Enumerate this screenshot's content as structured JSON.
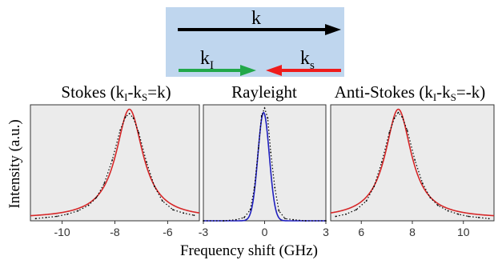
{
  "diagram": {
    "k_label": "k",
    "kI_main": "k",
    "kI_sub": "I",
    "ks_main": "k",
    "ks_sub": "s",
    "box_color": "#bfd6ee",
    "k_arrow_color": "#000000",
    "kI_arrow_color": "#22a84a",
    "ks_arrow_color": "#ee1c1c"
  },
  "axes": {
    "ylabel": "Intensity (a.u.)",
    "xlabel": "Frequency shift (GHz)",
    "panel_bg": "#ebebeb",
    "grid_color": "#ffffff"
  },
  "chart_data": [
    {
      "type": "line",
      "title": "Stokes (k",
      "title_sub1": "I",
      "title_mid": "-k",
      "title_sub2": "S",
      "title_end": "=k)",
      "xlim": [
        -11.2,
        -4.8
      ],
      "ylim": [
        0,
        1.05
      ],
      "xticks": [
        -10,
        -8,
        -6
      ],
      "xticklabels": [
        "-10",
        "-8",
        "-6"
      ],
      "grid_lines": false,
      "fit": {
        "center": -7.45,
        "width": 0.62,
        "amplitude": 0.99,
        "baseline": 0.02,
        "color": "#d62728"
      },
      "measured": {
        "style": "dotted",
        "x": [
          -11.0,
          -10.6,
          -10.2,
          -9.8,
          -9.4,
          -9.0,
          -8.7,
          -8.4,
          -8.1,
          -7.8,
          -7.6,
          -7.45,
          -7.3,
          -7.1,
          -6.8,
          -6.5,
          -6.2,
          -5.8,
          -5.4,
          -5.0
        ],
        "y": [
          0.02,
          0.03,
          0.04,
          0.06,
          0.09,
          0.14,
          0.21,
          0.34,
          0.55,
          0.82,
          0.94,
          0.97,
          0.93,
          0.8,
          0.53,
          0.31,
          0.18,
          0.1,
          0.07,
          0.05
        ]
      }
    },
    {
      "type": "line",
      "title": "Rayleight",
      "xlim": [
        -3.0,
        3.0
      ],
      "ylim": [
        0,
        1.05
      ],
      "xticks": [
        -3,
        0,
        3
      ],
      "xticklabels": [
        "-3",
        "0",
        "3"
      ],
      "grid_lines": false,
      "fit": {
        "center": -0.05,
        "width": 0.28,
        "amplitude": 0.98,
        "baseline": 0.0,
        "color": "#1f1fbf",
        "shape": "gaussian"
      },
      "measured": {
        "style": "dotted",
        "x": [
          -3.0,
          -2.0,
          -1.4,
          -1.0,
          -0.7,
          -0.5,
          -0.3,
          -0.15,
          0.0,
          0.15,
          0.3,
          0.5,
          0.7,
          1.0,
          1.4,
          2.0,
          3.0
        ],
        "y": [
          0.0,
          0.0,
          0.01,
          0.03,
          0.1,
          0.3,
          0.66,
          0.95,
          1.02,
          0.93,
          0.62,
          0.3,
          0.09,
          0.02,
          0.01,
          0.0,
          0.0
        ]
      }
    },
    {
      "type": "line",
      "title": "Anti-Stokes (k",
      "title_sub1": "I",
      "title_mid": "-k",
      "title_sub2": "S",
      "title_end": "=-k)",
      "xlim": [
        4.8,
        11.2
      ],
      "ylim": [
        0,
        1.05
      ],
      "xticks": [
        6,
        8,
        10
      ],
      "xticklabels": [
        "6",
        "8",
        "10"
      ],
      "grid_lines": false,
      "fit": {
        "center": 7.45,
        "width": 0.62,
        "amplitude": 0.99,
        "baseline": 0.02,
        "color": "#d62728"
      },
      "measured": {
        "style": "dotted",
        "x": [
          5.0,
          5.4,
          5.8,
          6.2,
          6.5,
          6.8,
          7.1,
          7.3,
          7.45,
          7.6,
          7.8,
          8.1,
          8.4,
          8.7,
          9.0,
          9.4,
          9.8,
          10.2,
          10.6,
          11.0
        ],
        "y": [
          0.04,
          0.06,
          0.1,
          0.18,
          0.31,
          0.53,
          0.8,
          0.93,
          0.98,
          0.94,
          0.82,
          0.55,
          0.34,
          0.21,
          0.14,
          0.09,
          0.06,
          0.04,
          0.03,
          0.02
        ]
      }
    }
  ]
}
